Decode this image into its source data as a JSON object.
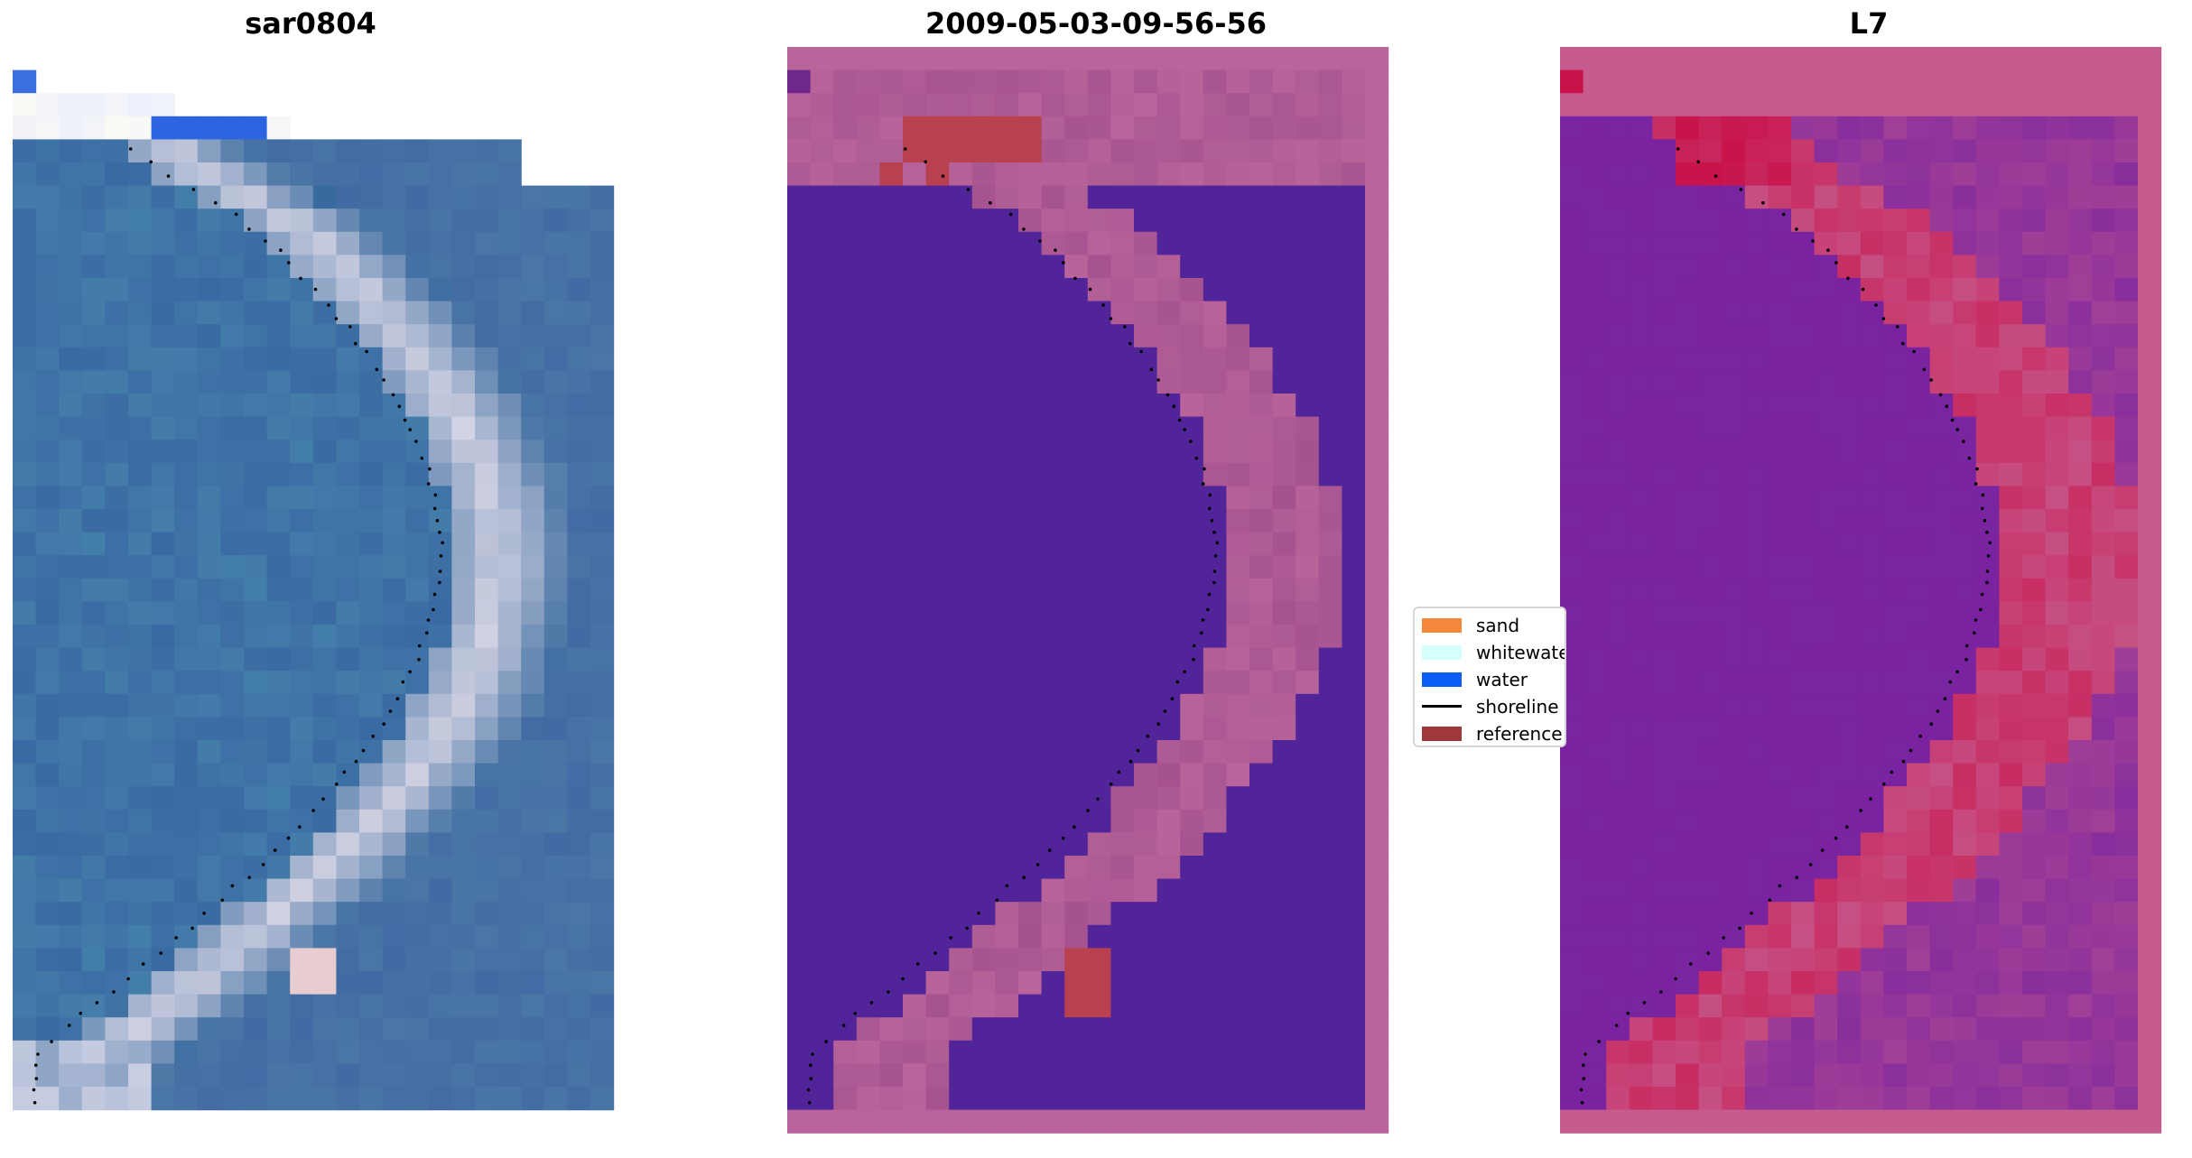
{
  "titles": {
    "left": "sar0804",
    "middle": "2009-05-03-09-56-56",
    "right": "L7"
  },
  "legend": {
    "items": [
      {
        "label": "sand",
        "color": "#f4873c",
        "kind": "patch"
      },
      {
        "label": "whitewater",
        "color": "#d4fffb",
        "kind": "patch"
      },
      {
        "label": "water",
        "color": "#0b5cf2",
        "kind": "patch"
      },
      {
        "label": "shoreline",
        "color": "#000000",
        "kind": "line"
      },
      {
        "label": "reference",
        "color": "#a0373d",
        "kind": "patch"
      }
    ]
  },
  "colors": {
    "water_rgb": "#4a76a6",
    "sand_rgb": "#d9d7e6",
    "classified_water": "#52249a",
    "classified_land": "#b9649a",
    "classified_land_dark": "#9d4a8a",
    "classified_reference": "#b8404f",
    "index_water": "#7a22a0",
    "index_land": "#c65c8e",
    "index_high": "#c8124a",
    "shoreline": "#000000"
  },
  "icons": {
    "shoreline_marker": "dot-marker"
  }
}
